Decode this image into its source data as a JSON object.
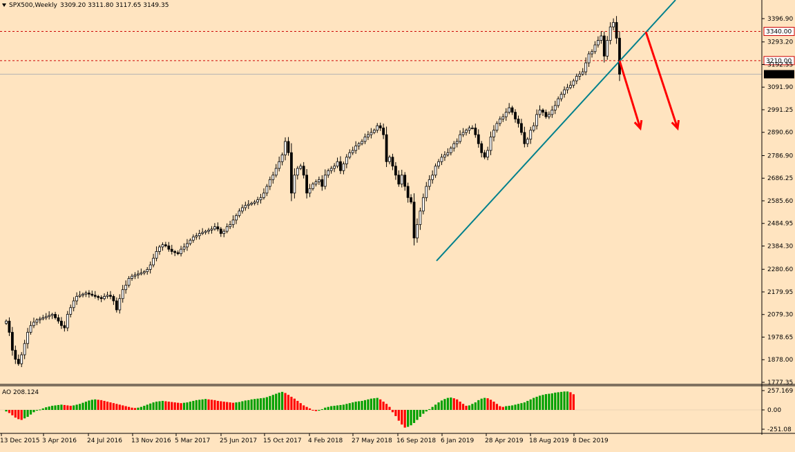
{
  "header": {
    "symbol_timeframe": "SPX500,Weekly",
    "ohlc": "3309.20 3311.80 3117.65 3149.35",
    "menu_icon": "triangle-down-icon"
  },
  "colors": {
    "background": "#ffe4c0",
    "candle": "#000000",
    "trendline": "#00808c",
    "arrow": "#ff0000",
    "level_line": "#cc0000",
    "ao_up": "#00a000",
    "ao_down": "#ff0000",
    "price_line": "#b4b4b4"
  },
  "chart_data": [
    {
      "type": "candlestick",
      "title": "SPX500,Weekly",
      "x_labels": [
        "13 Dec 2015",
        "3 Apr 2016",
        "24 Jul 2016",
        "13 Nov 2016",
        "5 Mar 2017",
        "25 Jun 2017",
        "15 Oct 2017",
        "4 Feb 2018",
        "27 May 2018",
        "16 Sep 2018",
        "6 Jan 2019",
        "28 Apr 2019",
        "18 Aug 2019",
        "8 Dec 2019"
      ],
      "y_ticks": [
        "3396.90",
        "3293.20",
        "3192.55",
        "3091.90",
        "2991.25",
        "2890.60",
        "2786.90",
        "2686.25",
        "2585.60",
        "2484.95",
        "2384.30",
        "2280.60",
        "2179.95",
        "2079.30",
        "1978.65",
        "1878.00",
        "1777.35"
      ],
      "ylim": [
        1777.35,
        3396.9
      ],
      "levels": [
        {
          "label": "3340.00",
          "value": 3340.0
        },
        {
          "label": "3210.00",
          "value": 3210.0
        }
      ],
      "current_price": {
        "label": "3149.35",
        "value": 3149.35
      },
      "closes": [
        2050,
        2000,
        1920,
        1880,
        1860,
        1900,
        1950,
        2000,
        2030,
        2045,
        2055,
        2060,
        2065,
        2070,
        2075,
        2080,
        2065,
        2050,
        2030,
        2020,
        2080,
        2110,
        2140,
        2160,
        2165,
        2170,
        2175,
        2170,
        2165,
        2160,
        2155,
        2150,
        2160,
        2165,
        2160,
        2140,
        2100,
        2150,
        2190,
        2210,
        2240,
        2250,
        2255,
        2260,
        2265,
        2270,
        2280,
        2300,
        2330,
        2360,
        2380,
        2390,
        2385,
        2370,
        2360,
        2355,
        2350,
        2370,
        2380,
        2395,
        2410,
        2425,
        2430,
        2440,
        2445,
        2450,
        2455,
        2460,
        2470,
        2460,
        2440,
        2450,
        2470,
        2480,
        2500,
        2520,
        2540,
        2555,
        2565,
        2570,
        2575,
        2580,
        2590,
        2600,
        2620,
        2650,
        2680,
        2700,
        2730,
        2760,
        2790,
        2850,
        2800,
        2620,
        2700,
        2730,
        2740,
        2700,
        2620,
        2640,
        2660,
        2670,
        2680,
        2650,
        2700,
        2720,
        2730,
        2740,
        2760,
        2720,
        2750,
        2780,
        2800,
        2810,
        2830,
        2840,
        2850,
        2870,
        2880,
        2890,
        2900,
        2920,
        2910,
        2880,
        2760,
        2780,
        2740,
        2700,
        2660,
        2700,
        2650,
        2600,
        2580,
        2420,
        2480,
        2540,
        2600,
        2650,
        2680,
        2700,
        2740,
        2760,
        2780,
        2790,
        2800,
        2820,
        2840,
        2850,
        2880,
        2890,
        2900,
        2910,
        2910,
        2880,
        2840,
        2800,
        2780,
        2810,
        2870,
        2900,
        2930,
        2950,
        2960,
        2980,
        3000,
        2980,
        2950,
        2930,
        2890,
        2840,
        2860,
        2900,
        2920,
        2970,
        2990,
        2980,
        2960,
        2970,
        2990,
        3010,
        3040,
        3060,
        3080,
        3090,
        3100,
        3120,
        3140,
        3150,
        3160,
        3200,
        3240,
        3250,
        3280,
        3300,
        3320,
        3230,
        3300,
        3360,
        3380,
        3310,
        3149.35
      ]
    },
    {
      "type": "bar",
      "title": "AO 208.124",
      "y_ticks": [
        "257.169",
        "0.00",
        "-251.08"
      ],
      "ylim": [
        -251.08,
        257.169
      ],
      "values": [
        -20,
        -40,
        -70,
        -100,
        -120,
        -130,
        -110,
        -90,
        -60,
        -30,
        -10,
        5,
        20,
        35,
        45,
        55,
        60,
        65,
        70,
        65,
        60,
        55,
        60,
        70,
        80,
        95,
        110,
        125,
        135,
        140,
        135,
        130,
        120,
        110,
        100,
        90,
        80,
        70,
        60,
        50,
        40,
        30,
        25,
        30,
        40,
        55,
        70,
        85,
        100,
        110,
        115,
        120,
        115,
        110,
        105,
        100,
        95,
        90,
        95,
        100,
        110,
        120,
        130,
        135,
        140,
        145,
        140,
        135,
        130,
        120,
        115,
        110,
        105,
        100,
        95,
        100,
        105,
        115,
        125,
        130,
        140,
        145,
        150,
        155,
        160,
        170,
        185,
        200,
        215,
        230,
        240,
        225,
        200,
        175,
        150,
        120,
        90,
        60,
        40,
        20,
        0,
        -15,
        -10,
        10,
        30,
        40,
        50,
        55,
        60,
        65,
        70,
        80,
        90,
        100,
        110,
        115,
        120,
        130,
        140,
        150,
        155,
        160,
        140,
        110,
        80,
        40,
        -30,
        -80,
        -140,
        -190,
        -230,
        -220,
        -200,
        -170,
        -130,
        -90,
        -50,
        -20,
        10,
        40,
        70,
        100,
        125,
        145,
        160,
        165,
        155,
        140,
        110,
        80,
        55,
        60,
        80,
        100,
        130,
        150,
        160,
        155,
        135,
        110,
        80,
        50,
        40,
        50,
        55,
        60,
        70,
        80,
        90,
        100,
        120,
        140,
        160,
        175,
        190,
        200,
        210,
        215,
        220,
        230,
        235,
        240,
        245,
        245,
        235,
        208
      ]
    }
  ]
}
